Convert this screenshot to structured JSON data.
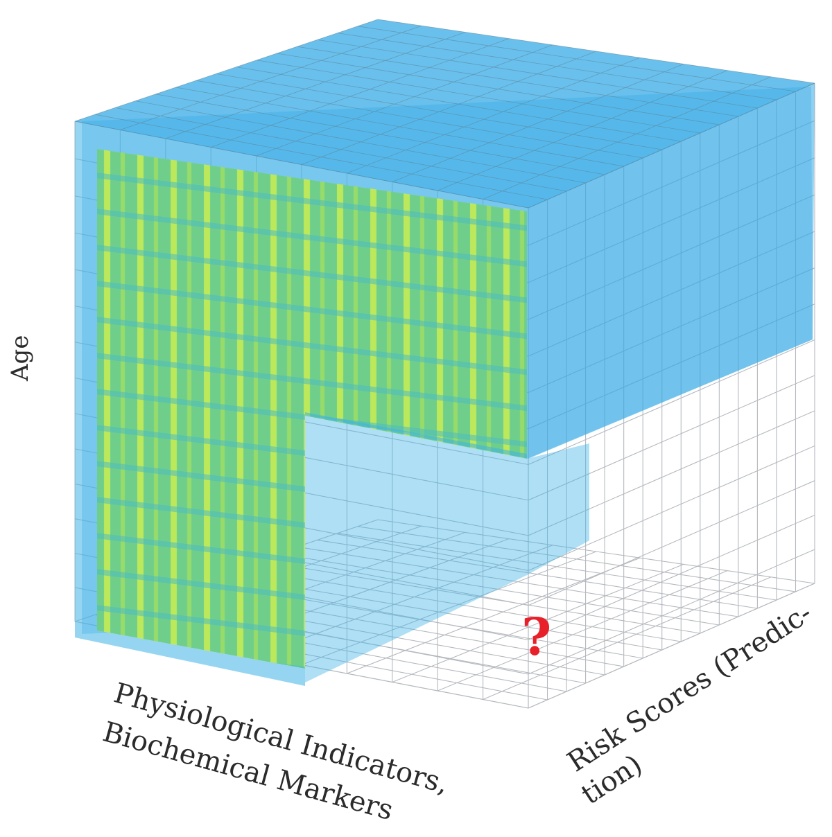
{
  "diagram": {
    "axis_labels": {
      "vertical": "Age",
      "left_line1": "Physiological Indicators,",
      "left_line2": "Biochemical Markers",
      "right_line1": "Risk Scores (Predic-",
      "right_line2": "tion)"
    },
    "missing_marker": "?",
    "grid": {
      "vertical_cells": 14,
      "left_axis_cells": 10,
      "right_axis_cells": 15
    },
    "colors": {
      "outer_cell": "#3fb2e8",
      "inner_cell": "#8fdc6a",
      "grid_line": "#9aa0a6",
      "missing_marker": "#e8202a"
    }
  }
}
